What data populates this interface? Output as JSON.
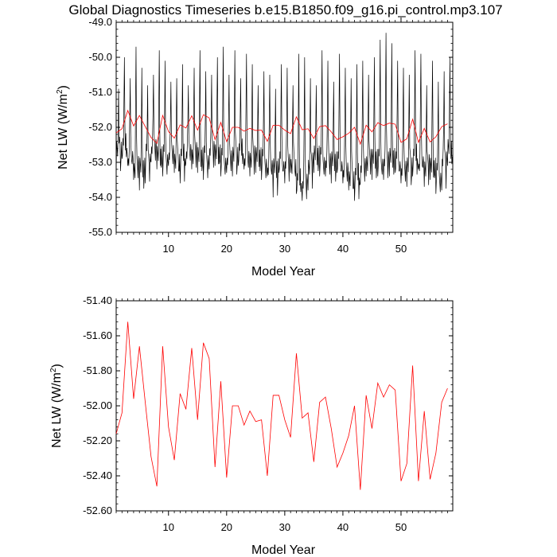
{
  "chart_data": [
    {
      "type": "line",
      "title": "Global Diagnostics Timeseries b.e15.B1850.f09_g16.pi_control.mp3.107",
      "xlabel": "Model Year",
      "ylabel": "Net LW (W/m",
      "ylabel_sup": "2",
      "ylabel_close": ")",
      "xlim": [
        1,
        58.9
      ],
      "ylim": [
        -55.0,
        -49.0
      ],
      "xticks": [
        10,
        20,
        30,
        40,
        50
      ],
      "xtick_labels": [
        "10",
        "20",
        "30",
        "40",
        "50"
      ],
      "yticks": [
        -55.0,
        -54.0,
        -53.0,
        -52.0,
        -51.0,
        -50.0,
        -49.0
      ],
      "ytick_labels": [
        "-55.0",
        "-54.0",
        "-53.0",
        "-52.0",
        "-51.0",
        "-50.0",
        "-49.0"
      ],
      "grid": false,
      "series": [
        {
          "name": "",
          "color": "#000000",
          "monthly": true,
          "peaks": [
            -50.9,
            -50.0,
            -50.6,
            -49.7,
            -50.3,
            -50.8,
            -50.5,
            -49.8,
            -50.1,
            -50.7,
            -50.6,
            -50.2,
            -50.8,
            -50.3,
            -49.8,
            -50.4,
            -50.5,
            -50.0,
            -49.7,
            -50.5,
            -49.8,
            -50.6,
            -49.9,
            -50.2,
            -50.8,
            -50.4,
            -50.5,
            -50.9,
            -50.2,
            -50.3,
            -50.8,
            -49.9,
            -50.0,
            -50.6,
            -50.8,
            -49.8,
            -50.1,
            -50.7,
            -49.9,
            -50.3,
            -50.6,
            -50.2,
            -50.1,
            -50.5,
            -50.0,
            -49.5,
            -49.3,
            -49.6,
            -50.1,
            -50.3,
            -50.5,
            -49.8,
            -49.9,
            -50.8,
            -50.1,
            -50.7,
            -50.4,
            -50.0
          ],
          "troughs": [
            -53.3,
            -52.9,
            -53.1,
            -53.5,
            -53.8,
            -53.6,
            -53.0,
            -53.2,
            -53.4,
            -53.1,
            -53.3,
            -53.6,
            -53.0,
            -53.2,
            -53.3,
            -53.5,
            -53.2,
            -53.1,
            -53.4,
            -53.3,
            -53.4,
            -53.1,
            -53.2,
            -53.4,
            -53.3,
            -53.5,
            -53.4,
            -54.0,
            -53.3,
            -53.6,
            -53.3,
            -53.9,
            -54.1,
            -53.8,
            -53.3,
            -53.4,
            -53.4,
            -53.6,
            -53.3,
            -53.6,
            -53.8,
            -54.1,
            -53.6,
            -53.4,
            -53.5,
            -53.4,
            -53.5,
            -53.4,
            -53.3,
            -53.6,
            -53.7,
            -53.4,
            -53.2,
            -53.7,
            -53.5,
            -53.9,
            -53.8,
            -53.1
          ]
        },
        {
          "name": "",
          "color": "#ff0000",
          "x": [
            1,
            2,
            3,
            4,
            5,
            6,
            7,
            8,
            9,
            10,
            11,
            12,
            13,
            14,
            15,
            16,
            17,
            18,
            19,
            20,
            21,
            22,
            23,
            24,
            25,
            26,
            27,
            28,
            29,
            30,
            31,
            32,
            33,
            34,
            35,
            36,
            37,
            38,
            39,
            40,
            41,
            42,
            43,
            44,
            45,
            46,
            47,
            48,
            49,
            50,
            51,
            52,
            53,
            54,
            55,
            56,
            57,
            58
          ],
          "values": [
            -52.16,
            -52.04,
            -51.52,
            -51.96,
            -51.66,
            -51.98,
            -52.29,
            -52.46,
            -51.66,
            -52.12,
            -52.31,
            -51.93,
            -52.02,
            -51.67,
            -52.08,
            -51.64,
            -51.73,
            -52.35,
            -51.86,
            -52.41,
            -52.0,
            -52.0,
            -52.11,
            -52.03,
            -52.09,
            -52.08,
            -52.4,
            -51.94,
            -51.94,
            -52.08,
            -52.18,
            -51.7,
            -52.07,
            -52.04,
            -52.32,
            -51.98,
            -51.95,
            -52.13,
            -52.35,
            -52.27,
            -52.17,
            -52.0,
            -52.48,
            -51.94,
            -52.13,
            -51.87,
            -51.95,
            -51.88,
            -51.91,
            -52.43,
            -52.33,
            -51.77,
            -52.43,
            -52.03,
            -52.42,
            -52.27,
            -51.98,
            -51.9
          ]
        }
      ]
    },
    {
      "type": "line",
      "xlabel": "Model Year",
      "ylabel": "Net LW (W/m",
      "ylabel_sup": "2",
      "ylabel_close": ")",
      "xlim": [
        1,
        58.9
      ],
      "ylim": [
        -52.6,
        -51.4
      ],
      "xticks": [
        10,
        20,
        30,
        40,
        50
      ],
      "xtick_labels": [
        "10",
        "20",
        "30",
        "40",
        "50"
      ],
      "yticks": [
        -52.6,
        -52.4,
        -52.2,
        -52.0,
        -51.8,
        -51.6,
        -51.4
      ],
      "ytick_labels": [
        "-52.60",
        "-52.40",
        "-52.20",
        "-52.00",
        "-51.80",
        "-51.60",
        "-51.40"
      ],
      "grid": false,
      "series": [
        {
          "name": "",
          "color": "#ff0000",
          "x": [
            1,
            2,
            3,
            4,
            5,
            6,
            7,
            8,
            9,
            10,
            11,
            12,
            13,
            14,
            15,
            16,
            17,
            18,
            19,
            20,
            21,
            22,
            23,
            24,
            25,
            26,
            27,
            28,
            29,
            30,
            31,
            32,
            33,
            34,
            35,
            36,
            37,
            38,
            39,
            40,
            41,
            42,
            43,
            44,
            45,
            46,
            47,
            48,
            49,
            50,
            51,
            52,
            53,
            54,
            55,
            56,
            57,
            58
          ],
          "values": [
            -52.16,
            -52.04,
            -51.52,
            -51.96,
            -51.66,
            -51.98,
            -52.29,
            -52.46,
            -51.66,
            -52.12,
            -52.31,
            -51.93,
            -52.02,
            -51.67,
            -52.08,
            -51.64,
            -51.73,
            -52.35,
            -51.86,
            -52.41,
            -52.0,
            -52.0,
            -52.11,
            -52.03,
            -52.09,
            -52.08,
            -52.4,
            -51.94,
            -51.94,
            -52.08,
            -52.18,
            -51.7,
            -52.07,
            -52.04,
            -52.32,
            -51.98,
            -51.95,
            -52.13,
            -52.35,
            -52.27,
            -52.17,
            -52.0,
            -52.48,
            -51.94,
            -52.13,
            -51.87,
            -51.95,
            -51.88,
            -51.91,
            -52.43,
            -52.33,
            -51.77,
            -52.43,
            -52.03,
            -52.42,
            -52.27,
            -51.98,
            -51.9
          ]
        }
      ]
    }
  ]
}
